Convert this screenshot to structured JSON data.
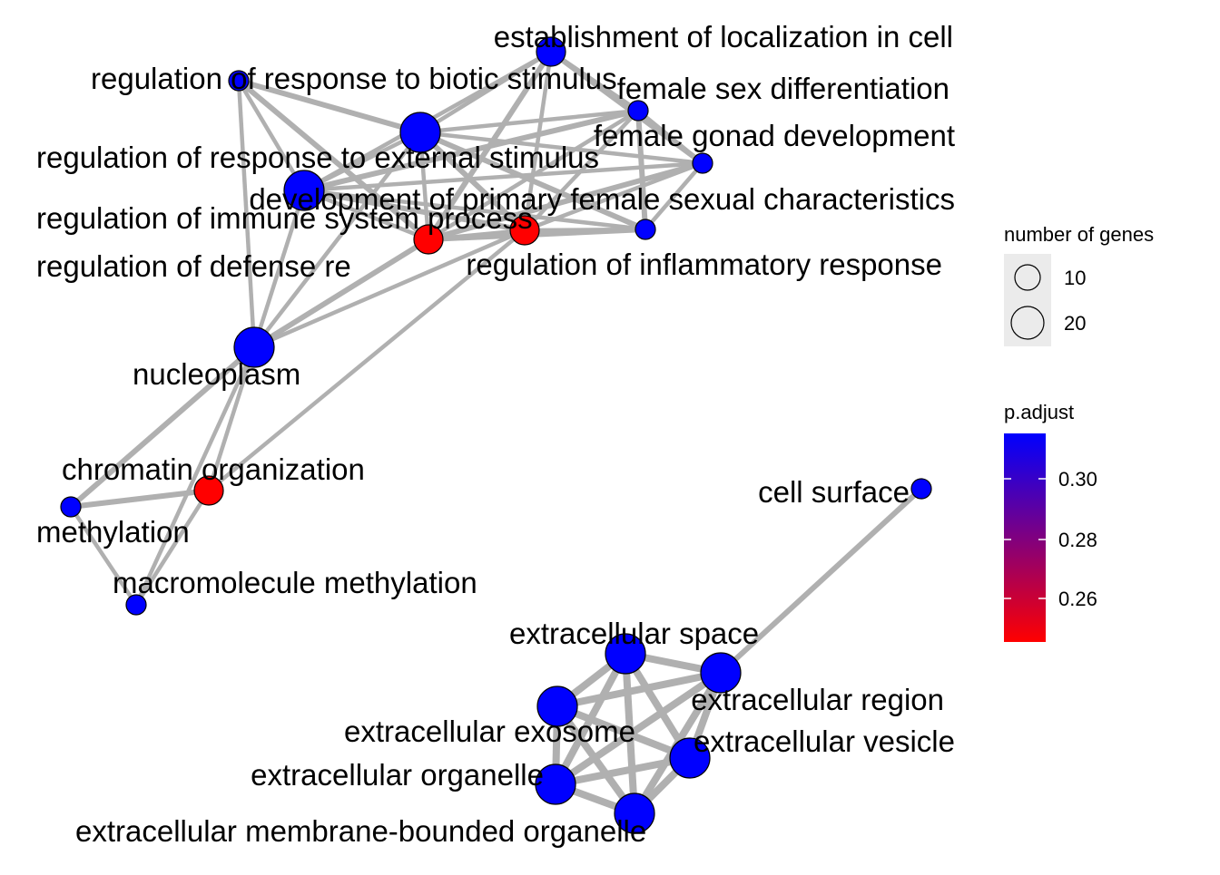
{
  "diagram": {
    "type": "enrichment-map-network",
    "nodes": [
      {
        "id": "establishment",
        "label": "establishment of localization in cell",
        "color": "#0000ff",
        "size": "medium"
      },
      {
        "id": "biotic",
        "label": "regulation of response to biotic stimulus",
        "color": "#0000ff",
        "size": "small"
      },
      {
        "id": "female_sex",
        "label": "female sex differentiation",
        "color": "#0000ff",
        "size": "small"
      },
      {
        "id": "female_gonad",
        "label": "female gonad development",
        "color": "#0000ff",
        "size": "small"
      },
      {
        "id": "external_stim",
        "label": "regulation of response to external stimulus",
        "color": "#0000ff",
        "size": "large"
      },
      {
        "id": "primary_female",
        "label": "development of primary female sexual characteristics",
        "color": "#0000ff",
        "size": "small"
      },
      {
        "id": "immune",
        "label": "regulation of immune system process",
        "color": "#0000ff",
        "size": "large"
      },
      {
        "id": "defense",
        "label": "regulation of defense re",
        "color": "#ff0000",
        "size": "medium"
      },
      {
        "id": "inflammatory",
        "label": "regulation of inflammatory response",
        "color": "#ff0000",
        "size": "medium"
      },
      {
        "id": "nucleoplasm",
        "label": "nucleoplasm",
        "color": "#0000ff",
        "size": "large"
      },
      {
        "id": "chromatin",
        "label": "chromatin organization",
        "color": "#ff0000",
        "size": "medium"
      },
      {
        "id": "methylation",
        "label": "methylation",
        "color": "#0000ff",
        "size": "small"
      },
      {
        "id": "macro_methyl",
        "label": "macromolecule methylation",
        "color": "#0000ff",
        "size": "small"
      },
      {
        "id": "cell_surface",
        "label": "cell surface",
        "color": "#0000ff",
        "size": "small"
      },
      {
        "id": "ec_space",
        "label": "extracellular space",
        "color": "#0000ff",
        "size": "large"
      },
      {
        "id": "ec_region",
        "label": "extracellular region",
        "color": "#0000ff",
        "size": "large"
      },
      {
        "id": "ec_exosome",
        "label": "extracellular exosome",
        "color": "#0000ff",
        "size": "large"
      },
      {
        "id": "ec_vesicle",
        "label": "extracellular vesicle",
        "color": "#0000ff",
        "size": "large"
      },
      {
        "id": "ec_organelle",
        "label": "extracellular organelle",
        "color": "#0000ff",
        "size": "large"
      },
      {
        "id": "ec_membrane",
        "label": "extracellular membrane-bounded organelle",
        "color": "#0000ff",
        "size": "large"
      }
    ],
    "edges": [
      [
        "biotic",
        "external_stim"
      ],
      [
        "biotic",
        "immune"
      ],
      [
        "biotic",
        "nucleoplasm"
      ],
      [
        "biotic",
        "defense"
      ],
      [
        "establishment",
        "external_stim"
      ],
      [
        "establishment",
        "immune"
      ],
      [
        "establishment",
        "defense"
      ],
      [
        "establishment",
        "inflammatory"
      ],
      [
        "establishment",
        "female_sex"
      ],
      [
        "establishment",
        "female_gonad"
      ],
      [
        "external_stim",
        "female_sex"
      ],
      [
        "external_stim",
        "female_gonad"
      ],
      [
        "external_stim",
        "primary_female"
      ],
      [
        "external_stim",
        "immune"
      ],
      [
        "external_stim",
        "defense"
      ],
      [
        "external_stim",
        "inflammatory"
      ],
      [
        "external_stim",
        "nucleoplasm"
      ],
      [
        "female_sex",
        "female_gonad"
      ],
      [
        "female_sex",
        "primary_female"
      ],
      [
        "female_sex",
        "defense"
      ],
      [
        "female_sex",
        "inflammatory"
      ],
      [
        "female_sex",
        "immune"
      ],
      [
        "female_gonad",
        "primary_female"
      ],
      [
        "female_gonad",
        "inflammatory"
      ],
      [
        "female_gonad",
        "defense"
      ],
      [
        "female_gonad",
        "immune"
      ],
      [
        "primary_female",
        "inflammatory"
      ],
      [
        "primary_female",
        "defense"
      ],
      [
        "primary_female",
        "immune"
      ],
      [
        "immune",
        "defense"
      ],
      [
        "immune",
        "inflammatory"
      ],
      [
        "immune",
        "nucleoplasm"
      ],
      [
        "defense",
        "inflammatory"
      ],
      [
        "defense",
        "nucleoplasm"
      ],
      [
        "inflammatory",
        "nucleoplasm"
      ],
      [
        "nucleoplasm",
        "chromatin"
      ],
      [
        "nucleoplasm",
        "methylation"
      ],
      [
        "nucleoplasm",
        "macro_methyl"
      ],
      [
        "chromatin",
        "inflammatory"
      ],
      [
        "chromatin",
        "methylation"
      ],
      [
        "chromatin",
        "macro_methyl"
      ],
      [
        "methylation",
        "macro_methyl"
      ],
      [
        "cell_surface",
        "ec_region"
      ],
      [
        "ec_space",
        "ec_region"
      ],
      [
        "ec_space",
        "ec_exosome"
      ],
      [
        "ec_space",
        "ec_vesicle"
      ],
      [
        "ec_space",
        "ec_organelle"
      ],
      [
        "ec_space",
        "ec_membrane"
      ],
      [
        "ec_region",
        "ec_exosome"
      ],
      [
        "ec_region",
        "ec_vesicle"
      ],
      [
        "ec_region",
        "ec_organelle"
      ],
      [
        "ec_region",
        "ec_membrane"
      ],
      [
        "ec_exosome",
        "ec_vesicle"
      ],
      [
        "ec_exosome",
        "ec_organelle"
      ],
      [
        "ec_exosome",
        "ec_membrane"
      ],
      [
        "ec_vesicle",
        "ec_organelle"
      ],
      [
        "ec_vesicle",
        "ec_membrane"
      ],
      [
        "ec_organelle",
        "ec_membrane"
      ]
    ],
    "edge_color": "#b0b0b0"
  },
  "legend_size": {
    "title": "number of genes",
    "entries": [
      {
        "label": "10"
      },
      {
        "label": "20"
      }
    ]
  },
  "legend_color": {
    "title": "p.adjust",
    "ticks": [
      {
        "label": "0.30"
      },
      {
        "label": "0.28"
      },
      {
        "label": "0.26"
      }
    ],
    "gradient_top": "#0000ff",
    "gradient_bottom": "#ff0000"
  }
}
